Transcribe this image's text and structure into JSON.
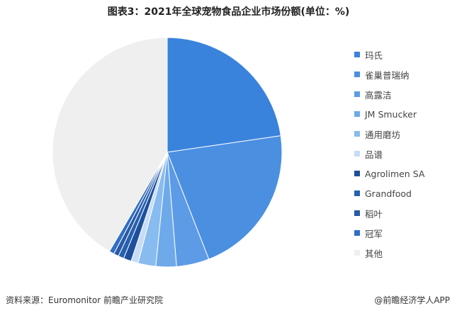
{
  "title": "图表3：2021年全球宠物食品企业市场份额(单位：%)",
  "footer": {
    "source": "资料来源：Euromonitor 前瞻产业研究院",
    "brand": "@前瞻经济学人APP"
  },
  "chart_data": {
    "type": "pie",
    "title": "图表3：2021年全球宠物食品企业市场份额(单位：%)",
    "start_angle_deg": 0,
    "direction": "clockwise",
    "legend_position": "right",
    "slices": [
      {
        "label": "玛氏",
        "value": 22.7,
        "color": "#3a83dc"
      },
      {
        "label": "雀巢普瑞纳",
        "value": 21.4,
        "color": "#4b8fe1"
      },
      {
        "label": "高露洁",
        "value": 4.6,
        "color": "#5d9be6"
      },
      {
        "label": "JM Smucker",
        "value": 2.9,
        "color": "#6eaaea"
      },
      {
        "label": "通用磨坊",
        "value": 2.5,
        "color": "#88bbef"
      },
      {
        "label": "品谱",
        "value": 1.0,
        "color": "#c7dcf6"
      },
      {
        "label": "Agrolimen SA",
        "value": 1.1,
        "color": "#1e4f9c"
      },
      {
        "label": "Grandfood",
        "value": 0.8,
        "color": "#2660b0"
      },
      {
        "label": "稻叶",
        "value": 0.7,
        "color": "#2a5aa6"
      },
      {
        "label": "冠军",
        "value": 0.7,
        "color": "#2f6fc4"
      },
      {
        "label": "其他",
        "value": 41.6,
        "color": "#efefef"
      }
    ]
  }
}
